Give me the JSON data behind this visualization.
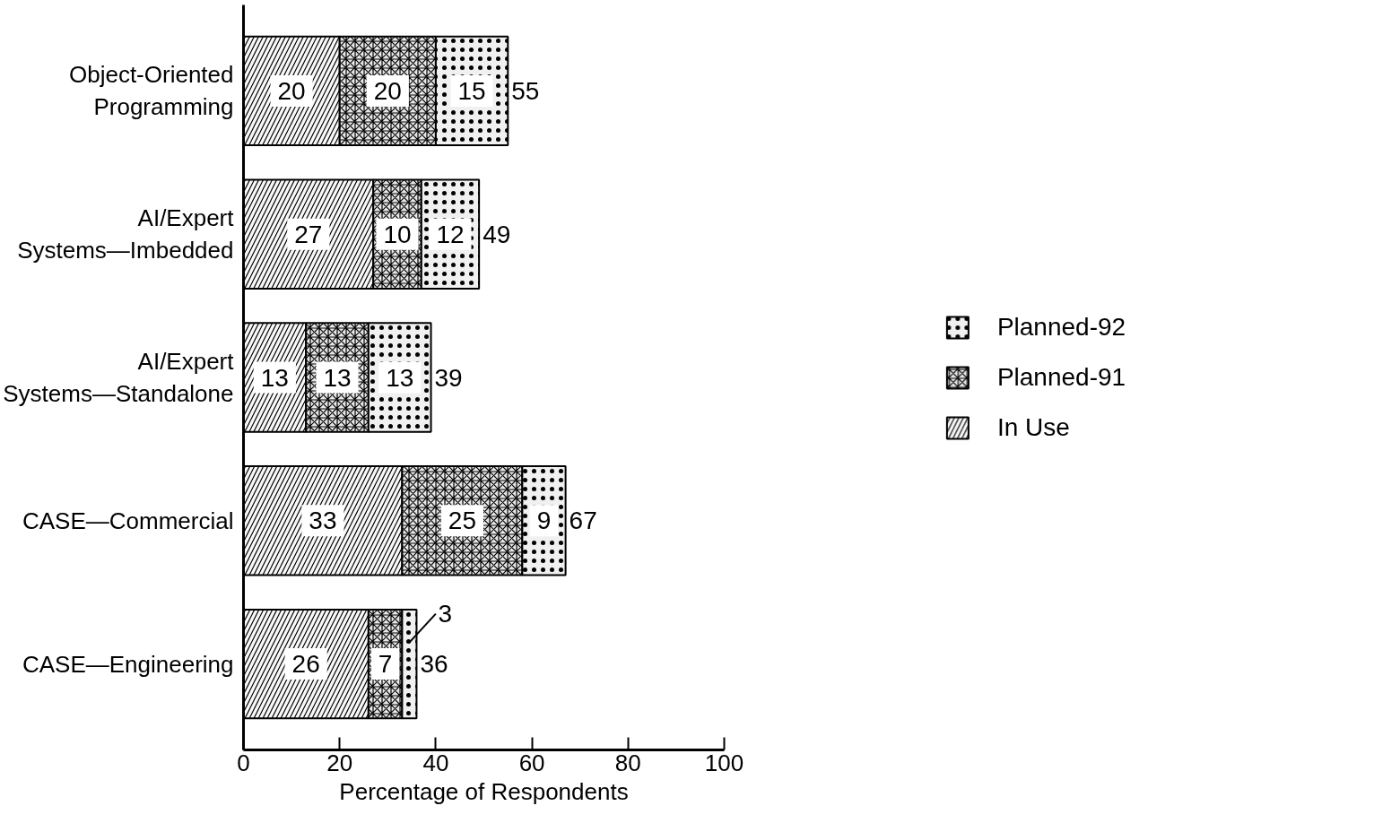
{
  "chart_data": {
    "type": "bar",
    "orientation": "horizontal",
    "stacked": true,
    "xlabel": "Percentage of Respondents",
    "categories": [
      "Object-Oriented\nProgramming",
      "AI/Expert\nSystems—Imbedded",
      "AI/Expert\nSystems—Standalone",
      "CASE—Commercial",
      "CASE—Engineering"
    ],
    "series": [
      {
        "name": "In Use",
        "color": "#f8f8f8",
        "values": [
          20,
          27,
          13,
          33,
          26
        ]
      },
      {
        "name": "Planned-91",
        "color": "#e8e8e8",
        "values": [
          20,
          10,
          13,
          25,
          7
        ]
      },
      {
        "name": "Planned-92",
        "color": "#f0f0f0",
        "values": [
          15,
          12,
          13,
          9,
          3
        ]
      }
    ],
    "totals": [
      "55",
      "49",
      "39",
      "67",
      "36"
    ],
    "data_labels": true,
    "xlim": [
      0,
      100
    ],
    "xticks": [
      0,
      20,
      40,
      60,
      80,
      100
    ],
    "grid": false,
    "legend": "right"
  }
}
